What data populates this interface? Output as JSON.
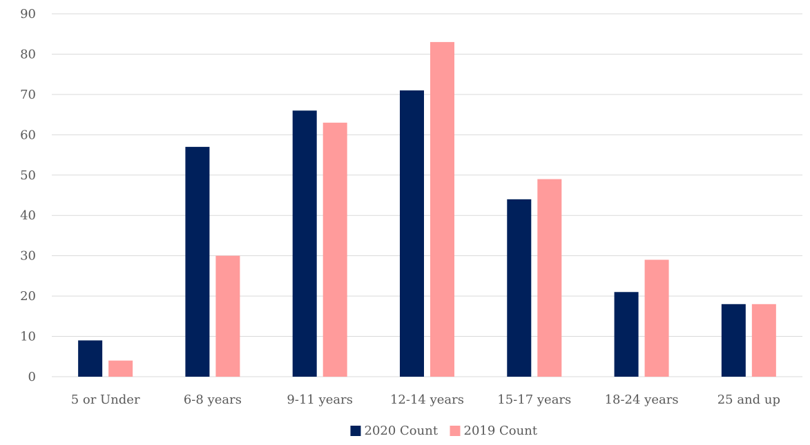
{
  "chart_data": {
    "type": "bar",
    "title": "",
    "xlabel": "",
    "ylabel": "",
    "categories": [
      "5 or Under",
      "6-8 years",
      "9-11 years",
      "12-14 years",
      "15-17 years",
      "18-24 years",
      "25 and up"
    ],
    "series": [
      {
        "name": "2020 Count",
        "values": [
          9,
          57,
          66,
          71,
          44,
          21,
          18
        ],
        "color": "#00205b"
      },
      {
        "name": "2019 Count",
        "values": [
          4,
          30,
          63,
          83,
          49,
          29,
          18
        ],
        "color": "#ff9b9b"
      }
    ],
    "ylim": [
      0,
      90
    ],
    "yticks": [
      0,
      10,
      20,
      30,
      40,
      50,
      60,
      70,
      80,
      90
    ],
    "grid": true,
    "legend_position": "bottom"
  }
}
